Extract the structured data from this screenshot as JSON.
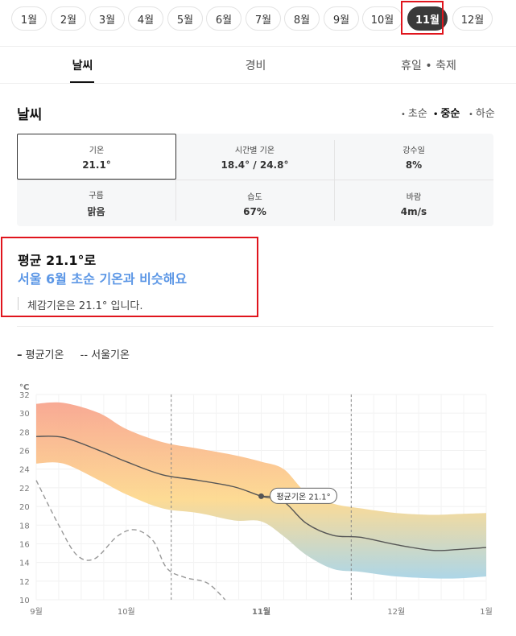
{
  "months": [
    "1월",
    "2월",
    "3월",
    "4월",
    "5월",
    "6월",
    "7월",
    "8월",
    "9월",
    "10월",
    "11월",
    "12월"
  ],
  "selected_month": "11월",
  "tabs": [
    {
      "label": "날씨"
    },
    {
      "label": "경비"
    },
    {
      "label": "휴일 • 축제"
    }
  ],
  "section": {
    "title": "날씨",
    "periods": [
      {
        "label": "초순"
      },
      {
        "label": "중순"
      },
      {
        "label": "하순"
      }
    ],
    "selected_period": "중순"
  },
  "stats": [
    {
      "label": "기온",
      "value": "21.1°"
    },
    {
      "label": "시간별 기온",
      "value": "18.4° / 24.8°"
    },
    {
      "label": "강수일",
      "value": "8%"
    },
    {
      "label": "구름",
      "value": "맑음"
    },
    {
      "label": "습도",
      "value": "67%"
    },
    {
      "label": "바람",
      "value": "4m/s"
    }
  ],
  "summary": {
    "line1": "평균 21.1°로",
    "line2": "서울 6월 초순 기온과 비슷해요",
    "feel": "체감기온은 21.1° 입니다."
  },
  "legend": {
    "avg": "평균기온",
    "seoul": "서울기온"
  },
  "colors": {
    "highlight": "#e0151d",
    "accent": "#5c97e6",
    "band_top": "#f8a58f",
    "band_mid": "#fdd98f",
    "band_bottom": "#a9d4e6"
  },
  "chart_data": {
    "type": "area",
    "unit_label": "°C",
    "y_ticks": [
      10,
      12,
      14,
      16,
      18,
      20,
      22,
      24,
      26,
      28,
      30,
      32
    ],
    "ylim": [
      10,
      32
    ],
    "x_ticks": [
      {
        "label": "9월",
        "x": 0
      },
      {
        "label": "10월",
        "x": 1
      },
      {
        "label": "11월",
        "x": 2.5
      },
      {
        "label": "12월",
        "x": 4
      },
      {
        "label": "1월",
        "x": 5
      }
    ],
    "xlim": [
      0,
      5
    ],
    "series": [
      {
        "name": "평균기온",
        "x": [
          0,
          0.3,
          0.7,
          1.0,
          1.4,
          1.8,
          2.2,
          2.5,
          2.75,
          3.0,
          3.3,
          3.6,
          4.0,
          4.4,
          4.7,
          5.0
        ],
        "y": [
          27.5,
          27.4,
          26.0,
          24.8,
          23.4,
          22.8,
          22.1,
          21.1,
          20.5,
          18.2,
          16.9,
          16.7,
          15.9,
          15.3,
          15.4,
          15.6
        ],
        "upper": [
          31.0,
          31.1,
          30.0,
          28.3,
          26.9,
          26.2,
          25.5,
          24.8,
          24.0,
          21.5,
          20.3,
          19.8,
          19.3,
          19.1,
          19.2,
          19.3
        ],
        "lower": [
          24.6,
          24.6,
          22.8,
          21.3,
          19.8,
          19.3,
          18.5,
          18.4,
          16.8,
          14.8,
          13.3,
          13.0,
          12.5,
          12.3,
          12.3,
          12.5
        ]
      },
      {
        "name": "서울기온",
        "x": [
          0,
          0.25,
          0.45,
          0.65,
          0.9,
          1.1,
          1.3,
          1.45,
          1.65,
          1.9,
          2.1
        ],
        "y": [
          22.8,
          18.0,
          14.8,
          14.4,
          16.8,
          17.5,
          16.3,
          13.4,
          12.4,
          11.8,
          10.0
        ]
      }
    ],
    "annotation": {
      "label": "평균기온 21.1°",
      "x": 2.5,
      "y": 21.1
    },
    "reference_lines_x": [
      1.5,
      3.5
    ]
  }
}
